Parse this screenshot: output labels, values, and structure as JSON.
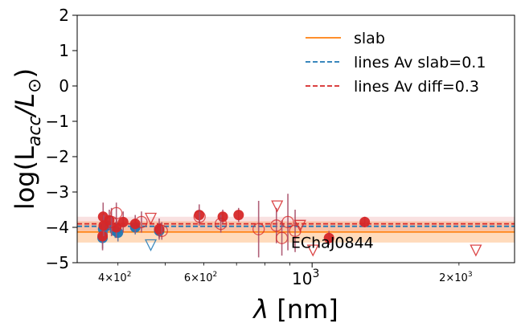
{
  "chart_data": {
    "type": "scatter",
    "xlabel_sym": "λ",
    "xlabel_unit": " [nm]",
    "ylabel_main": "log(L",
    "ylabel_sub": "acc",
    "ylabel_mid": "/L",
    "ylabel_sym": "⊙",
    "ylabel_end": ")",
    "x_scale": "log",
    "xlim": [
      330,
      2600
    ],
    "ylim": [
      -5,
      2
    ],
    "yticks": [
      {
        "value": 2,
        "label": "2"
      },
      {
        "value": 1,
        "label": "1"
      },
      {
        "value": 0,
        "label": "0"
      },
      {
        "value": -1,
        "label": "−1"
      },
      {
        "value": -2,
        "label": "−2"
      },
      {
        "value": -3,
        "label": "−3"
      },
      {
        "value": -4,
        "label": "−4"
      },
      {
        "value": -5,
        "label": "−5"
      }
    ],
    "xticks_major": [
      {
        "value": 1000,
        "base": "10",
        "exp": "3"
      }
    ],
    "xticks_minor": [
      {
        "value": 400,
        "mant": "4",
        "base": "10",
        "exp": "2"
      },
      {
        "value": 600,
        "mant": "6",
        "base": "10",
        "exp": "2"
      },
      {
        "value": 2000,
        "mant": "2",
        "base": "10",
        "exp": "3"
      }
    ],
    "xticks_minor_unlabeled": [
      500,
      700,
      800,
      900
    ],
    "annotation": "EChaJ0844",
    "legend": {
      "placement": "upper-right",
      "entries": [
        {
          "label": "slab",
          "color": "#ff7f0e",
          "style": "solid"
        },
        {
          "label": "lines Av slab=0.1",
          "color": "#1f77b4",
          "style": "dashed"
        },
        {
          "label": "lines Av diff=0.3",
          "color": "#d62728",
          "style": "dashed"
        }
      ]
    },
    "reference_lines": [
      {
        "name": "slab",
        "y": -4.13,
        "band": [
          -4.43,
          -3.83
        ],
        "color": "#ff7f0e",
        "style": "solid"
      },
      {
        "name": "lines Av slab=0.1",
        "y": -3.97,
        "color": "#1f77b4",
        "style": "dashed"
      },
      {
        "name": "lines Av diff=0.3",
        "y": -3.9,
        "band": [
          -4.1,
          -3.7
        ],
        "color": "#d62728",
        "style": "dashed"
      }
    ],
    "series": [
      {
        "marker": "filled-circle-blue",
        "color": "#1f77b4",
        "points": [
          {
            "x": 372,
            "y": -4.3,
            "err": 0.3
          },
          {
            "x": 373,
            "y": -4.05,
            "err": 0.25
          },
          {
            "x": 380,
            "y": -3.95,
            "err": 0.3
          },
          {
            "x": 395,
            "y": -4.1,
            "err": 0.2
          },
          {
            "x": 400,
            "y": -4.15,
            "err": 0.25
          },
          {
            "x": 434,
            "y": -4.0,
            "err": 0.2
          },
          {
            "x": 486,
            "y": -4.1,
            "err": 0.2
          }
        ]
      },
      {
        "marker": "triangle-down-blue",
        "color": "#1f77b4",
        "points": [
          {
            "x": 467,
            "y": -4.5,
            "err": 0
          }
        ]
      },
      {
        "marker": "filled-circle-red",
        "color": "#d62728",
        "points": [
          {
            "x": 372,
            "y": -4.25,
            "err": 0.4
          },
          {
            "x": 373,
            "y": -3.7,
            "err": 0.4
          },
          {
            "x": 374,
            "y": -3.95,
            "err": 0.3
          },
          {
            "x": 384,
            "y": -3.8,
            "err": 0.3
          },
          {
            "x": 397,
            "y": -4.0,
            "err": 0.3
          },
          {
            "x": 410,
            "y": -3.85,
            "err": 0.3
          },
          {
            "x": 434,
            "y": -3.9,
            "err": 0.25
          },
          {
            "x": 486,
            "y": -4.05,
            "err": 0.3
          },
          {
            "x": 587,
            "y": -3.65,
            "err": 0.3
          },
          {
            "x": 656,
            "y": -3.7,
            "err": 0.2
          },
          {
            "x": 707,
            "y": -3.65,
            "err": 0.2
          },
          {
            "x": 1083,
            "y": -4.3,
            "err": 0.2
          },
          {
            "x": 1282,
            "y": -3.85,
            "err": 0.15
          }
        ]
      },
      {
        "marker": "open-circle-red",
        "color": "#d62728",
        "points": [
          {
            "x": 388,
            "y": -3.85,
            "err": 0.4
          },
          {
            "x": 397,
            "y": -3.6,
            "err": 0.3
          },
          {
            "x": 447,
            "y": -3.85,
            "err": 0.3
          },
          {
            "x": 492,
            "y": -4.1,
            "err": 0.25
          },
          {
            "x": 588,
            "y": -3.7,
            "err": 0.2
          },
          {
            "x": 650,
            "y": -3.9,
            "err": 0.25
          },
          {
            "x": 777,
            "y": -4.05,
            "err": 0.8
          },
          {
            "x": 845,
            "y": -3.95,
            "err": 0.5
          },
          {
            "x": 867,
            "y": -4.3,
            "err": 0.5
          },
          {
            "x": 892,
            "y": -3.85,
            "err": 0.8
          },
          {
            "x": 923,
            "y": -4.1,
            "err": 0.6
          }
        ]
      },
      {
        "marker": "triangle-down-red",
        "color": "#d62728",
        "points": [
          {
            "x": 467,
            "y": -3.75,
            "err": 0
          },
          {
            "x": 848,
            "y": -3.4,
            "err": 0
          },
          {
            "x": 945,
            "y": -3.95,
            "err": 0
          },
          {
            "x": 1004,
            "y": -4.65,
            "err": 0
          },
          {
            "x": 2166,
            "y": -4.65,
            "err": 0
          }
        ]
      }
    ]
  }
}
